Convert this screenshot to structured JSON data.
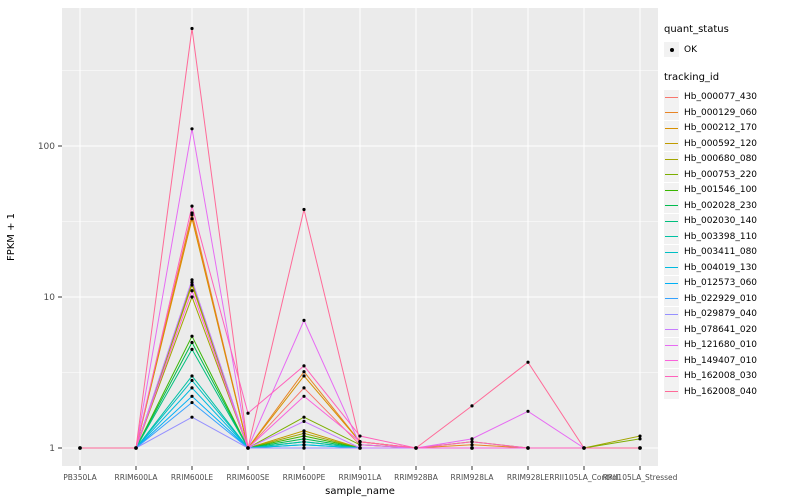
{
  "colors": {
    "panel_bg": "#EBEBEB",
    "grid": "#FFFFFF",
    "tick_text": "#4D4D4D",
    "point": "#000000",
    "legend_key_bg": "#F2F2F2"
  },
  "legend": {
    "quant_status_title": "quant_status",
    "quant_status_items": [
      {
        "label": "OK"
      }
    ],
    "tracking_id_title": "tracking_id"
  },
  "chart_data": {
    "type": "line",
    "title": "",
    "xlabel": "sample_name",
    "ylabel": "FPKM + 1",
    "y_scale": "log10",
    "y_ticks": [
      1,
      10,
      100
    ],
    "ylim": [
      0.95,
      700
    ],
    "grid": true,
    "legend_position": "right",
    "categories": [
      "PB350LA",
      "RRIM600LA",
      "RRIM600LE",
      "RRIM600SE",
      "RRIM600PE",
      "RRIM901LA",
      "RRIM928BA",
      "RRIM928LA",
      "RRIM928LE",
      "RRII105LA_Control",
      "RRII105LA_Stressed"
    ],
    "series": [
      {
        "name": "Hb_000077_430",
        "color": "#F8766D",
        "values": [
          1,
          1,
          36,
          1,
          2.5,
          1.05,
          1,
          1,
          1,
          1,
          1
        ]
      },
      {
        "name": "Hb_000129_060",
        "color": "#E88526",
        "values": [
          1,
          1,
          35,
          1,
          3.2,
          1.1,
          1,
          1.05,
          1,
          1,
          1
        ]
      },
      {
        "name": "Hb_000212_170",
        "color": "#D89000",
        "values": [
          1,
          1,
          33,
          1,
          3.0,
          1.1,
          1,
          1,
          1,
          1,
          1
        ]
      },
      {
        "name": "Hb_000592_120",
        "color": "#C09B00",
        "values": [
          1,
          1,
          12,
          1,
          1.3,
          1,
          1,
          1,
          1,
          1,
          1
        ]
      },
      {
        "name": "Hb_000680_080",
        "color": "#A3A500",
        "values": [
          1,
          1,
          10,
          1,
          1.25,
          1,
          1,
          1,
          1,
          1,
          1.2
        ]
      },
      {
        "name": "Hb_000753_220",
        "color": "#7CAE00",
        "values": [
          1,
          1,
          12.5,
          1,
          1.6,
          1.05,
          1,
          1.1,
          1,
          1,
          1.15
        ]
      },
      {
        "name": "Hb_001546_100",
        "color": "#39B600",
        "values": [
          1,
          1,
          5.5,
          1,
          1.2,
          1,
          1,
          1,
          1,
          1,
          1
        ]
      },
      {
        "name": "Hb_002028_230",
        "color": "#00BB4E",
        "values": [
          1,
          1,
          5,
          1,
          1.15,
          1,
          1,
          1,
          1,
          1,
          1
        ]
      },
      {
        "name": "Hb_002030_140",
        "color": "#00BF7D",
        "values": [
          1,
          1,
          4.5,
          1,
          1.1,
          1,
          1,
          1,
          1,
          1,
          1
        ]
      },
      {
        "name": "Hb_003398_110",
        "color": "#00C1A3",
        "values": [
          1,
          1,
          3,
          1,
          1.1,
          1,
          1,
          1,
          1,
          1,
          1
        ]
      },
      {
        "name": "Hb_003411_080",
        "color": "#00BFC4",
        "values": [
          1,
          1,
          2.8,
          1,
          1.05,
          1,
          1,
          1,
          1,
          1,
          1
        ]
      },
      {
        "name": "Hb_004019_130",
        "color": "#00BAE0",
        "values": [
          1,
          1,
          2.5,
          1,
          1.05,
          1,
          1,
          1,
          1,
          1,
          1
        ]
      },
      {
        "name": "Hb_012573_060",
        "color": "#00B0F6",
        "values": [
          1,
          1,
          2.2,
          1,
          1,
          1,
          1,
          1,
          1,
          1,
          1
        ]
      },
      {
        "name": "Hb_022929_010",
        "color": "#35A2FF",
        "values": [
          1,
          1,
          2,
          1,
          1,
          1,
          1,
          1,
          1,
          1,
          1
        ]
      },
      {
        "name": "Hb_029879_040",
        "color": "#9590FF",
        "values": [
          1,
          1,
          1.6,
          1,
          1,
          1,
          1,
          1,
          1,
          1,
          1
        ]
      },
      {
        "name": "Hb_078641_020",
        "color": "#C77CFF",
        "values": [
          1,
          1,
          13,
          1,
          1.5,
          1,
          1,
          1,
          1,
          1,
          1
        ]
      },
      {
        "name": "Hb_121680_010",
        "color": "#E76BF3",
        "values": [
          1,
          1,
          130,
          1,
          7,
          1.05,
          1,
          1.15,
          1.75,
          1,
          1
        ]
      },
      {
        "name": "Hb_149407_010",
        "color": "#FA62DB",
        "values": [
          1,
          1,
          11,
          1,
          2.2,
          1.1,
          1,
          1,
          1,
          1,
          1
        ]
      },
      {
        "name": "Hb_162008_030",
        "color": "#FF62BC",
        "values": [
          1,
          1,
          40,
          1.7,
          3.5,
          1.2,
          1,
          1.1,
          1,
          1,
          1
        ]
      },
      {
        "name": "Hb_162008_040",
        "color": "#FF6A98",
        "values": [
          1,
          1,
          600,
          1,
          38,
          1.1,
          1,
          1.9,
          3.7,
          1,
          1
        ]
      }
    ]
  }
}
